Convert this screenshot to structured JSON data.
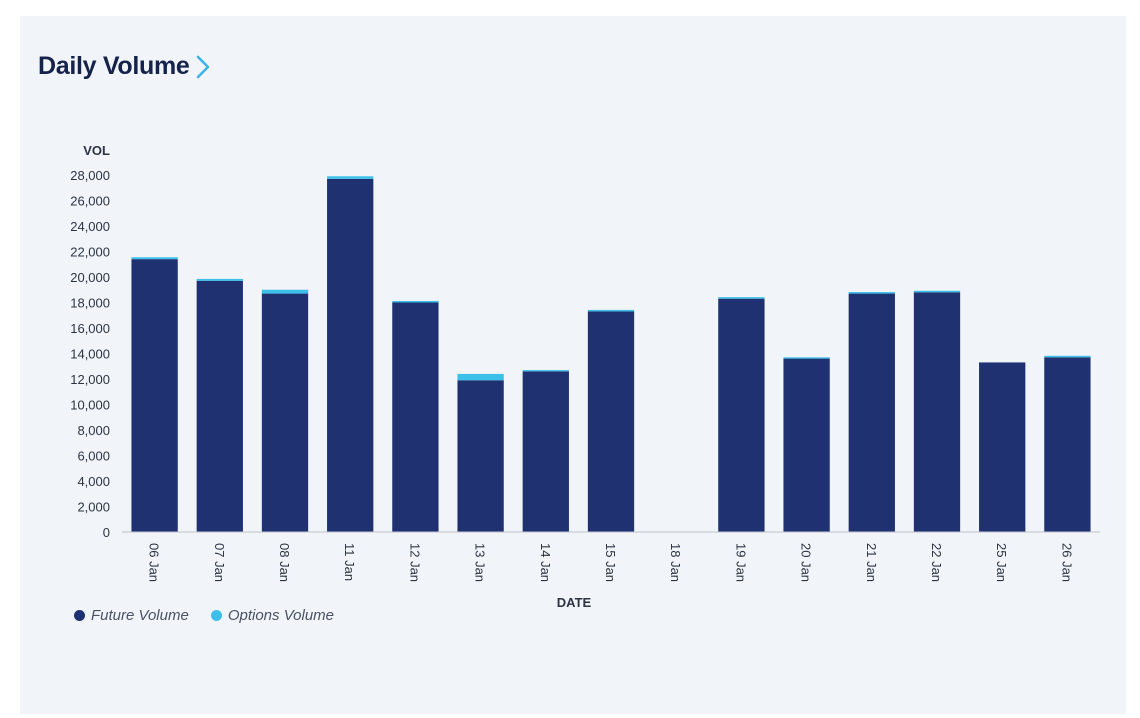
{
  "header": {
    "title": "Daily Volume",
    "link_icon": "chevron-right-icon"
  },
  "colors": {
    "future": "#1f3170",
    "options": "#3cc0ea",
    "accent": "#3cb4e6",
    "axis": "#bfc4cc"
  },
  "chart_data": {
    "type": "bar",
    "stacked": true,
    "categories": [
      "06 Jan",
      "07 Jan",
      "08 Jan",
      "11 Jan",
      "12 Jan",
      "13 Jan",
      "14 Jan",
      "15 Jan",
      "18 Jan",
      "19 Jan",
      "20 Jan",
      "21 Jan",
      "22 Jan",
      "25 Jan",
      "26 Jan"
    ],
    "series": [
      {
        "name": "Future Volume",
        "color": "#1f3170",
        "values": [
          21400,
          19700,
          18700,
          27700,
          18000,
          11900,
          12600,
          17300,
          0,
          18300,
          13600,
          18700,
          18800,
          13300,
          13700
        ]
      },
      {
        "name": "Options Volume",
        "color": "#3cc0ea",
        "values": [
          150,
          150,
          300,
          200,
          120,
          500,
          100,
          120,
          0,
          120,
          100,
          120,
          120,
          0,
          120
        ]
      }
    ],
    "ylabel": "VOL",
    "xlabel": "DATE",
    "ylim": [
      0,
      28000
    ],
    "yticks": [
      0,
      2000,
      4000,
      6000,
      8000,
      10000,
      12000,
      14000,
      16000,
      18000,
      20000,
      22000,
      24000,
      26000,
      28000
    ],
    "ytick_labels": [
      "0",
      "2,000",
      "4,000",
      "6,000",
      "8,000",
      "10,000",
      "12,000",
      "14,000",
      "16,000",
      "18,000",
      "20,000",
      "22,000",
      "24,000",
      "26,000",
      "28,000"
    ],
    "grid": false,
    "legend_position": "bottom-left"
  }
}
